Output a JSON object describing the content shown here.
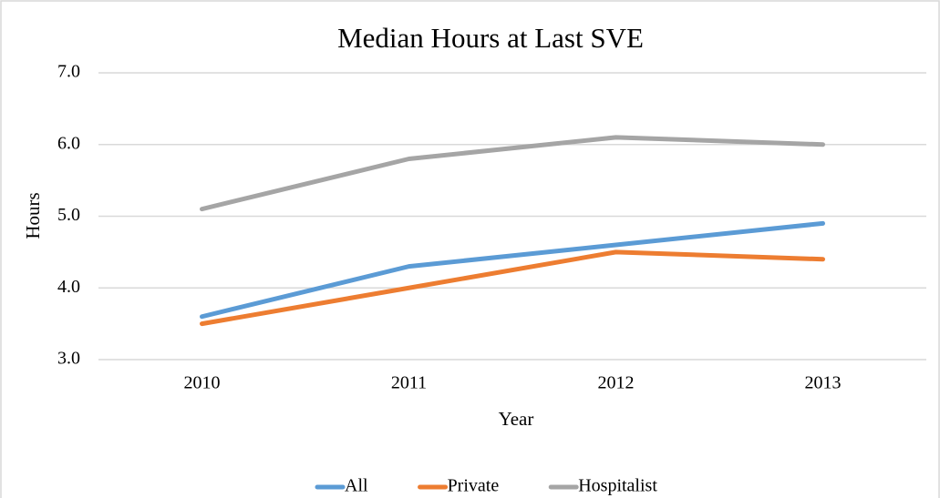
{
  "chart_data": {
    "type": "line",
    "title": "Median Hours at Last SVE",
    "x_label": "Year",
    "y_label": "Hours",
    "categories": [
      "2010",
      "2011",
      "2012",
      "2013"
    ],
    "series": [
      {
        "name": "All",
        "color": "#5b9bd5",
        "values": [
          3.6,
          4.3,
          4.6,
          4.9
        ]
      },
      {
        "name": "Private",
        "color": "#ed7d31",
        "values": [
          3.5,
          4.0,
          4.5,
          4.4
        ]
      },
      {
        "name": "Hospitalist",
        "color": "#a5a5a5",
        "values": [
          5.1,
          5.8,
          6.1,
          6.0
        ]
      }
    ],
    "ylim": [
      3,
      7
    ],
    "yticks": [
      {
        "value": 3,
        "label": "3.0"
      },
      {
        "value": 4,
        "label": "4.0"
      },
      {
        "value": 5,
        "label": "5.0"
      },
      {
        "value": 6,
        "label": "6.0"
      },
      {
        "value": 7,
        "label": "7.0"
      }
    ],
    "grid": true,
    "legend": "bottom"
  }
}
